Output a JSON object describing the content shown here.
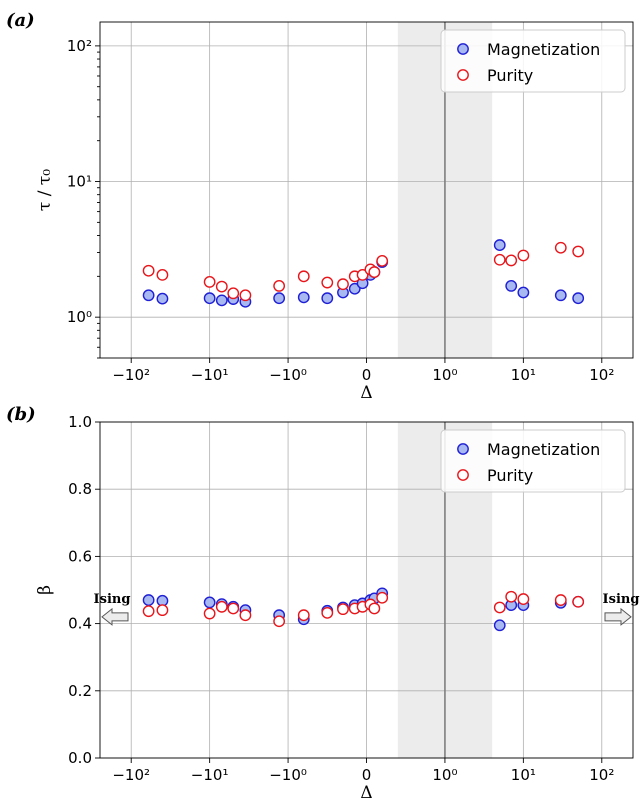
{
  "chart_data": [
    {
      "type": "scatter",
      "panel_label": "(a)",
      "xlabel": "Δ",
      "ylabel": "τ / τ₀",
      "y_scale": "log",
      "ylim": [
        0.5,
        150
      ],
      "y_ticks": [
        "10⁰",
        "10¹",
        "10²"
      ],
      "x_ticks": [
        "−10²",
        "−10¹",
        "−10⁰",
        "0",
        "10⁰",
        "10¹",
        "10²"
      ],
      "grid": true,
      "legend_placement": "top-right",
      "shaded_region": [
        0.4,
        4
      ],
      "vertical_line": 1,
      "series": [
        {
          "name": "Magnetization",
          "face_color": "#a8b8f0",
          "edge_color": "#1f1fd6",
          "points": [
            {
              "x": -60,
              "y": 1.45
            },
            {
              "x": -40,
              "y": 1.37
            },
            {
              "x": -10,
              "y": 1.38
            },
            {
              "x": -7,
              "y": 1.33
            },
            {
              "x": -5,
              "y": 1.36
            },
            {
              "x": -3.5,
              "y": 1.3
            },
            {
              "x": -1.3,
              "y": 1.38
            },
            {
              "x": -0.8,
              "y": 1.4
            },
            {
              "x": -0.5,
              "y": 1.38
            },
            {
              "x": -0.3,
              "y": 1.52
            },
            {
              "x": -0.15,
              "y": 1.62
            },
            {
              "x": -0.05,
              "y": 1.78
            },
            {
              "x": 0.05,
              "y": 2.05
            },
            {
              "x": 0.1,
              "y": 2.15
            },
            {
              "x": 0.2,
              "y": 2.55
            },
            {
              "x": 5,
              "y": 3.4
            },
            {
              "x": 7,
              "y": 1.7
            },
            {
              "x": 10,
              "y": 1.52
            },
            {
              "x": 30,
              "y": 1.45
            },
            {
              "x": 50,
              "y": 1.38
            }
          ]
        },
        {
          "name": "Purity",
          "face_color": "#ffffff",
          "edge_color": "#e8161b",
          "points": [
            {
              "x": -60,
              "y": 2.2
            },
            {
              "x": -40,
              "y": 2.05
            },
            {
              "x": -10,
              "y": 1.82
            },
            {
              "x": -7,
              "y": 1.68
            },
            {
              "x": -5,
              "y": 1.5
            },
            {
              "x": -3.5,
              "y": 1.45
            },
            {
              "x": -1.3,
              "y": 1.7
            },
            {
              "x": -0.8,
              "y": 2.0
            },
            {
              "x": -0.5,
              "y": 1.8
            },
            {
              "x": -0.3,
              "y": 1.75
            },
            {
              "x": -0.15,
              "y": 2.0
            },
            {
              "x": -0.05,
              "y": 2.05
            },
            {
              "x": 0.05,
              "y": 2.25
            },
            {
              "x": 0.1,
              "y": 2.15
            },
            {
              "x": 0.2,
              "y": 2.6
            },
            {
              "x": 5,
              "y": 2.65
            },
            {
              "x": 7,
              "y": 2.62
            },
            {
              "x": 10,
              "y": 2.85
            },
            {
              "x": 30,
              "y": 3.25
            },
            {
              "x": 50,
              "y": 3.05
            }
          ]
        }
      ]
    },
    {
      "type": "scatter",
      "panel_label": "(b)",
      "xlabel": "Δ",
      "ylabel": "β",
      "y_scale": "linear",
      "ylim": [
        0.0,
        1.0
      ],
      "y_ticks": [
        "0.0",
        "0.2",
        "0.4",
        "0.6",
        "0.8",
        "1.0"
      ],
      "x_ticks": [
        "−10²",
        "−10¹",
        "−10⁰",
        "0",
        "10⁰",
        "10¹",
        "10²"
      ],
      "grid": true,
      "legend_placement": "top-right",
      "shaded_region": [
        0.4,
        4
      ],
      "vertical_line": 1,
      "annotations": [
        {
          "text": "Ising",
          "side": "left",
          "y": 0.42
        },
        {
          "text": "Ising",
          "side": "right",
          "y": 0.42
        }
      ],
      "series": [
        {
          "name": "Magnetization",
          "face_color": "#a8b8f0",
          "edge_color": "#1f1fd6",
          "points": [
            {
              "x": -60,
              "y": 0.47
            },
            {
              "x": -40,
              "y": 0.468
            },
            {
              "x": -10,
              "y": 0.463
            },
            {
              "x": -7,
              "y": 0.458
            },
            {
              "x": -5,
              "y": 0.45
            },
            {
              "x": -3.5,
              "y": 0.44
            },
            {
              "x": -1.3,
              "y": 0.425
            },
            {
              "x": -0.8,
              "y": 0.413
            },
            {
              "x": -0.5,
              "y": 0.438
            },
            {
              "x": -0.3,
              "y": 0.448
            },
            {
              "x": -0.15,
              "y": 0.455
            },
            {
              "x": -0.05,
              "y": 0.46
            },
            {
              "x": 0.05,
              "y": 0.47
            },
            {
              "x": 0.1,
              "y": 0.475
            },
            {
              "x": 0.2,
              "y": 0.49
            },
            {
              "x": 5,
              "y": 0.395
            },
            {
              "x": 7,
              "y": 0.455
            },
            {
              "x": 10,
              "y": 0.455
            },
            {
              "x": 30,
              "y": 0.462
            },
            {
              "x": 50,
              "y": 0.465
            }
          ]
        },
        {
          "name": "Purity",
          "face_color": "#ffffff",
          "edge_color": "#e8161b",
          "points": [
            {
              "x": -60,
              "y": 0.437
            },
            {
              "x": -40,
              "y": 0.44
            },
            {
              "x": -10,
              "y": 0.43
            },
            {
              "x": -7,
              "y": 0.45
            },
            {
              "x": -5,
              "y": 0.445
            },
            {
              "x": -3.5,
              "y": 0.425
            },
            {
              "x": -1.3,
              "y": 0.407
            },
            {
              "x": -0.8,
              "y": 0.425
            },
            {
              "x": -0.5,
              "y": 0.432
            },
            {
              "x": -0.3,
              "y": 0.443
            },
            {
              "x": -0.15,
              "y": 0.445
            },
            {
              "x": -0.05,
              "y": 0.45
            },
            {
              "x": 0.05,
              "y": 0.457
            },
            {
              "x": 0.1,
              "y": 0.445
            },
            {
              "x": 0.2,
              "y": 0.477
            },
            {
              "x": 5,
              "y": 0.448
            },
            {
              "x": 7,
              "y": 0.48
            },
            {
              "x": 10,
              "y": 0.473
            },
            {
              "x": 30,
              "y": 0.47
            },
            {
              "x": 50,
              "y": 0.465
            }
          ]
        }
      ]
    }
  ]
}
